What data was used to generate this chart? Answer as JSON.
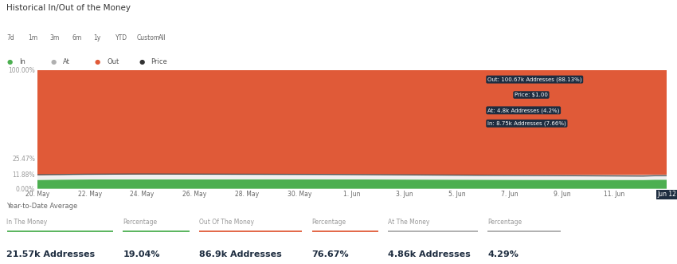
{
  "title": "Historical In/Out of the Money",
  "subtitle_buttons": [
    "7d",
    "1m",
    "3m",
    "6m",
    "1y",
    "YTD",
    "Custom",
    "All"
  ],
  "legend": [
    "In",
    "At",
    "Out",
    "Price"
  ],
  "legend_colors": [
    "#4caf50",
    "#b0b0b0",
    "#e05a38",
    "#333333"
  ],
  "x_labels": [
    "20. May",
    "22. May",
    "24. May",
    "26. May",
    "28. May",
    "30. May",
    "1. Jun",
    "3. Jun",
    "5. Jun",
    "7. Jun",
    "9. Jun",
    "11. Jun",
    "Jun 12"
  ],
  "n_points": 54,
  "in_values": [
    7.5,
    7.6,
    7.7,
    7.75,
    7.8,
    7.85,
    7.88,
    7.9,
    7.92,
    7.93,
    7.94,
    7.95,
    7.96,
    7.95,
    7.94,
    7.93,
    7.95,
    7.97,
    7.98,
    7.99,
    8.0,
    8.0,
    8.0,
    7.98,
    7.96,
    7.92,
    7.88,
    7.85,
    7.82,
    7.8,
    7.78,
    7.76,
    7.74,
    7.72,
    7.7,
    7.68,
    7.66,
    7.64,
    7.62,
    7.6,
    7.58,
    7.56,
    7.55,
    7.54,
    7.53,
    7.52,
    7.51,
    7.5,
    7.5,
    7.5,
    7.5,
    7.5,
    7.66,
    7.66
  ],
  "at_values": [
    4.2,
    4.2,
    4.2,
    4.2,
    4.2,
    4.2,
    4.2,
    4.2,
    4.2,
    4.2,
    4.2,
    4.2,
    4.2,
    4.2,
    4.2,
    4.2,
    4.2,
    4.2,
    4.2,
    4.2,
    4.2,
    4.2,
    4.2,
    4.2,
    4.2,
    4.2,
    4.2,
    4.2,
    4.2,
    4.2,
    4.2,
    4.2,
    4.2,
    4.2,
    4.2,
    4.2,
    4.2,
    4.2,
    4.2,
    4.2,
    4.2,
    4.2,
    4.2,
    4.2,
    4.2,
    4.2,
    4.2,
    4.2,
    4.2,
    4.2,
    4.2,
    4.2,
    4.2,
    4.2
  ],
  "price_line_pct": [
    11.8,
    11.9,
    11.95,
    12.1,
    12.2,
    12.25,
    12.3,
    12.35,
    12.4,
    12.42,
    12.4,
    12.38,
    12.35,
    12.32,
    12.3,
    12.28,
    12.25,
    12.22,
    12.2,
    12.18,
    12.15,
    12.12,
    12.1,
    12.08,
    12.05,
    12.0,
    11.95,
    11.9,
    11.85,
    11.8,
    11.75,
    11.7,
    11.65,
    11.6,
    11.55,
    11.5,
    11.45,
    11.4,
    11.35,
    11.3,
    11.25,
    11.2,
    11.15,
    11.1,
    11.05,
    11.0,
    10.95,
    10.9,
    10.85,
    10.8,
    10.75,
    10.7,
    11.0,
    11.0
  ],
  "y_ticks_labels": [
    "0.00%",
    "11.88%",
    "25.47%",
    "100.00%"
  ],
  "y_ticks_vals": [
    0,
    11.88,
    25.47,
    100
  ],
  "color_in": "#4caf50",
  "color_at": "#f0f0f0",
  "color_out": "#e05a38",
  "color_price": "#555555",
  "color_bg": "#ffffff",
  "tooltip_bg": "#1e2d40",
  "tooltip_text": "#ffffff",
  "tooltip_out": "Out: 100.67k Addresses (88.13%)",
  "tooltip_price": "Price: $1.00",
  "tooltip_at": "At: 4.8k Addresses (4.2%)",
  "tooltip_in": "In: 8.75k Addresses (7.66%)",
  "footer_title": "Year-to-Date Average",
  "footer_cols": [
    "In The Money",
    "Percentage",
    "Out Of The Money",
    "Percentage",
    "At The Money",
    "Percentage"
  ],
  "footer_col_colors": [
    "#4caf50",
    "#4caf50",
    "#e05a38",
    "#e05a38",
    "#aaaaaa",
    "#aaaaaa"
  ],
  "footer_vals": [
    "21.57k Addresses",
    "19.04%",
    "86.9k Addresses",
    "76.67%",
    "4.86k Addresses",
    "4.29%"
  ],
  "xlabel_highlight": "Jun 12",
  "xlabel_highlight_bg": "#1e2d40",
  "xlabel_highlight_color": "#ffffff"
}
